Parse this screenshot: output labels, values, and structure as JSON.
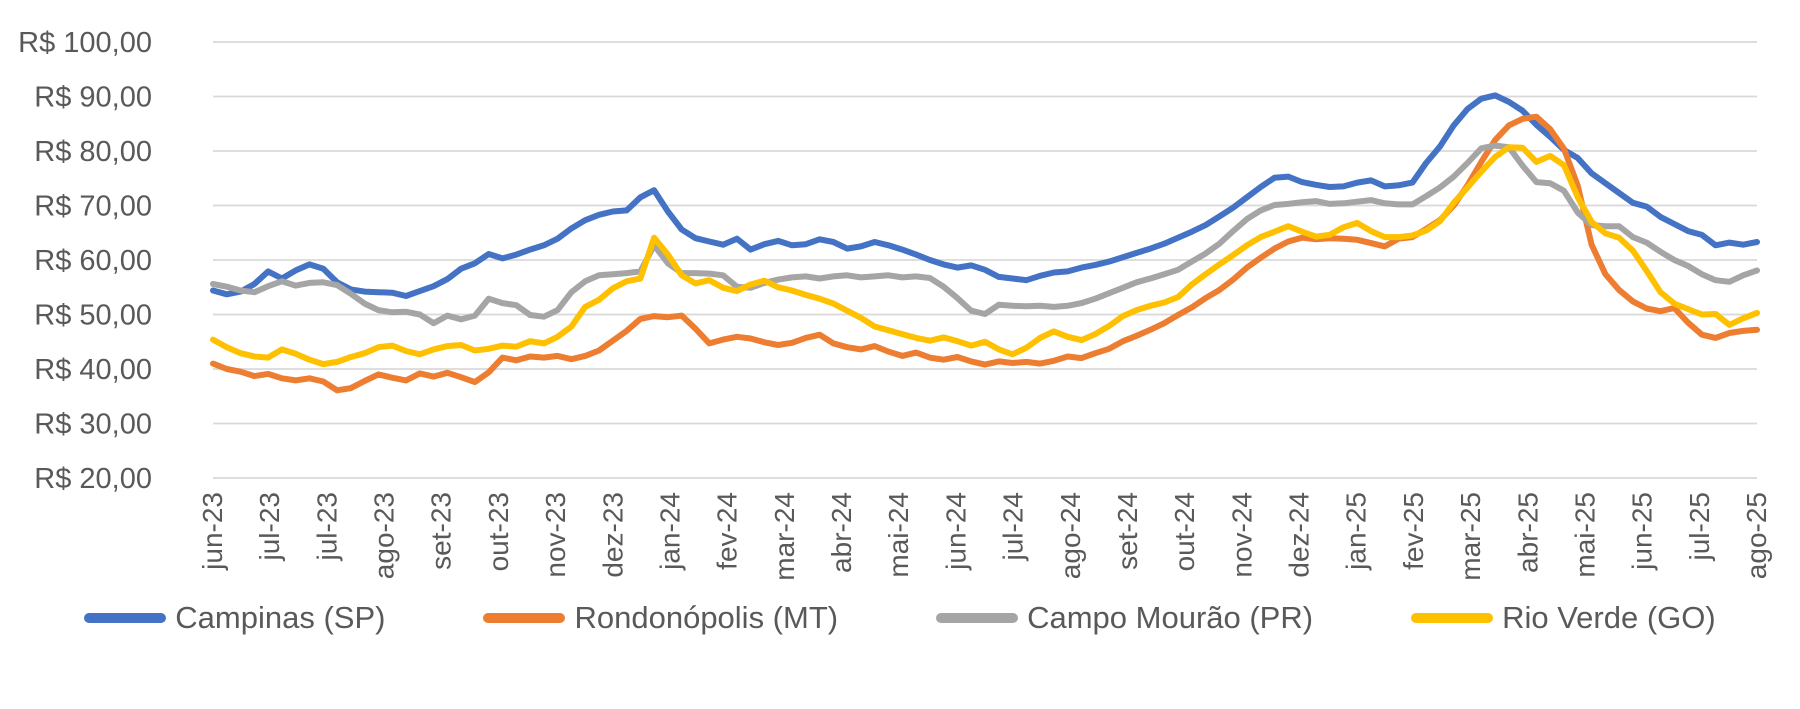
{
  "colors": {
    "grid": "#D9D9D9",
    "text": "#595959",
    "background": "#FFFFFF"
  },
  "chart_data": {
    "type": "line",
    "title": "",
    "currency_prefix": "R$",
    "legend_position": "bottom",
    "grid": "horizontal",
    "x_labels": [
      "jun-23",
      "jul-23",
      "jul-23",
      "ago-23",
      "set-23",
      "out-23",
      "nov-23",
      "dez-23",
      "jan-24",
      "fev-24",
      "mar-24",
      "abr-24",
      "mai-24",
      "jun-24",
      "jul-24",
      "ago-24",
      "set-24",
      "out-24",
      "nov-24",
      "dez-24",
      "jan-25",
      "fev-25",
      "mar-25",
      "abr-25",
      "mai-25",
      "jun-25",
      "jul-25",
      "ago-25"
    ],
    "y_axis": {
      "min": 20,
      "max": 100,
      "step": 10,
      "tick_labels": [
        "R$ 100,00",
        "R$ 90,00",
        "R$ 80,00",
        "R$ 70,00",
        "R$ 60,00",
        "R$ 50,00",
        "R$ 40,00",
        "R$ 30,00",
        "R$ 20,00"
      ]
    },
    "series": [
      {
        "name": "Campinas (SP)",
        "color": "#4472C4",
        "values": [
          54.4,
          53.7,
          54.2,
          55.6,
          57.9,
          56.6,
          58.1,
          59.2,
          58.4,
          55.9,
          54.6,
          54.2,
          54.1,
          54.0,
          53.4,
          54.3,
          55.2,
          56.5,
          58.4,
          59.4,
          61.1,
          60.3,
          61.0,
          61.9,
          62.7,
          63.9,
          65.8,
          67.3,
          68.3,
          68.9,
          69.1,
          71.5,
          72.8,
          68.9,
          65.6,
          64.0,
          63.4,
          62.8,
          63.9,
          61.9,
          62.9,
          63.5,
          62.7,
          62.9,
          63.8,
          63.3,
          62.1,
          62.5,
          63.3,
          62.7,
          61.9,
          61.0,
          60.0,
          59.2,
          58.6,
          59.0,
          58.2,
          56.9,
          56.6,
          56.3,
          57.1,
          57.7,
          57.9,
          58.6,
          59.1,
          59.7,
          60.5,
          61.3,
          62.1,
          63.0,
          64.1,
          65.2,
          66.4,
          68.0,
          69.6,
          71.5,
          73.4,
          75.1,
          75.3,
          74.3,
          73.8,
          73.4,
          73.5,
          74.2,
          74.6,
          73.5,
          73.7,
          74.2,
          77.8,
          80.8,
          84.7,
          87.7,
          89.6,
          90.2,
          89.0,
          87.4,
          84.8,
          82.6,
          80.2,
          78.7,
          75.9,
          74.1,
          72.3,
          70.5,
          69.8,
          67.9,
          66.6,
          65.3,
          64.6,
          62.7,
          63.2,
          62.8,
          63.3
        ]
      },
      {
        "name": "Rondonópolis (MT)",
        "color": "#ED7D31",
        "values": [
          41.0,
          40.0,
          39.5,
          38.7,
          39.1,
          38.3,
          37.9,
          38.3,
          37.7,
          36.1,
          36.5,
          37.8,
          39.0,
          38.4,
          37.9,
          39.2,
          38.6,
          39.3,
          38.5,
          37.6,
          39.4,
          42.1,
          41.6,
          42.3,
          42.1,
          42.4,
          41.8,
          42.4,
          43.4,
          45.2,
          47.0,
          49.2,
          49.7,
          49.5,
          49.8,
          47.4,
          44.7,
          45.4,
          45.9,
          45.6,
          44.9,
          44.4,
          44.8,
          45.7,
          46.3,
          44.7,
          44.0,
          43.6,
          44.2,
          43.2,
          42.4,
          43.0,
          42.1,
          41.7,
          42.2,
          41.4,
          40.8,
          41.4,
          41.1,
          41.3,
          41.0,
          41.5,
          42.3,
          42.0,
          42.9,
          43.7,
          45.1,
          46.1,
          47.2,
          48.4,
          49.9,
          51.3,
          53.0,
          54.5,
          56.4,
          58.6,
          60.4,
          62.1,
          63.4,
          64.1,
          63.8,
          64.0,
          63.9,
          63.7,
          63.1,
          62.5,
          63.9,
          64.2,
          65.7,
          67.3,
          70.0,
          73.7,
          78.0,
          82.0,
          84.7,
          85.9,
          86.3,
          84.0,
          80.4,
          73.6,
          62.8,
          57.4,
          54.5,
          52.4,
          51.1,
          50.6,
          51.2,
          48.5,
          46.3,
          45.7,
          46.6,
          47.0,
          47.2
        ]
      },
      {
        "name": "Campo Mourão (PR)",
        "color": "#A5A5A5",
        "values": [
          55.6,
          55.1,
          54.4,
          54.1,
          55.2,
          56.1,
          55.3,
          55.8,
          55.9,
          55.4,
          53.8,
          52.0,
          50.8,
          50.4,
          50.5,
          50.0,
          48.4,
          49.8,
          49.1,
          49.8,
          52.9,
          52.1,
          51.7,
          49.9,
          49.6,
          50.8,
          54.1,
          56.1,
          57.2,
          57.4,
          57.6,
          57.9,
          62.7,
          59.4,
          57.6,
          57.6,
          57.5,
          57.2,
          55.1,
          54.9,
          55.8,
          56.4,
          56.8,
          57.0,
          56.6,
          57.0,
          57.2,
          56.8,
          57.0,
          57.2,
          56.8,
          57.0,
          56.7,
          55.1,
          53.0,
          50.7,
          50.1,
          51.8,
          51.6,
          51.5,
          51.6,
          51.4,
          51.6,
          52.1,
          52.9,
          53.9,
          54.9,
          55.9,
          56.6,
          57.4,
          58.2,
          59.7,
          61.2,
          63.0,
          65.3,
          67.5,
          69.1,
          70.1,
          70.3,
          70.6,
          70.8,
          70.3,
          70.4,
          70.7,
          71.0,
          70.4,
          70.2,
          70.2,
          71.7,
          73.3,
          75.3,
          77.8,
          80.5,
          81.0,
          80.7,
          77.3,
          74.3,
          74.1,
          72.7,
          68.7,
          66.4,
          66.2,
          66.2,
          64.2,
          63.2,
          61.5,
          60.0,
          58.9,
          57.4,
          56.3,
          56.0,
          57.2,
          58.1
        ]
      },
      {
        "name": "Rio Verde (GO)",
        "color": "#FFC000",
        "values": [
          45.4,
          44.0,
          42.9,
          42.3,
          42.1,
          43.6,
          42.8,
          41.7,
          40.9,
          41.3,
          42.2,
          42.9,
          44.0,
          44.3,
          43.3,
          42.7,
          43.6,
          44.2,
          44.4,
          43.4,
          43.7,
          44.3,
          44.1,
          45.1,
          44.7,
          45.9,
          47.8,
          51.4,
          52.7,
          54.8,
          56.1,
          56.6,
          64.1,
          61.0,
          57.2,
          55.7,
          56.3,
          54.9,
          54.3,
          55.5,
          56.2,
          55.0,
          54.4,
          53.6,
          52.9,
          52.0,
          50.7,
          49.4,
          47.8,
          47.1,
          46.4,
          45.7,
          45.2,
          45.8,
          45.1,
          44.3,
          45.0,
          43.6,
          42.7,
          43.9,
          45.7,
          46.9,
          45.9,
          45.3,
          46.4,
          47.9,
          49.7,
          50.8,
          51.6,
          52.2,
          53.2,
          55.5,
          57.4,
          59.2,
          60.9,
          62.7,
          64.2,
          65.2,
          66.2,
          65.2,
          64.3,
          64.6,
          66.0,
          66.8,
          65.3,
          64.2,
          64.2,
          64.5,
          65.4,
          67.1,
          70.5,
          73.3,
          76.2,
          78.9,
          80.7,
          80.6,
          78.0,
          79.1,
          77.4,
          71.5,
          67.0,
          64.9,
          64.1,
          61.7,
          58.0,
          54.1,
          52.0,
          51.0,
          50.0,
          50.1,
          48.1,
          49.3,
          50.3
        ]
      }
    ]
  }
}
